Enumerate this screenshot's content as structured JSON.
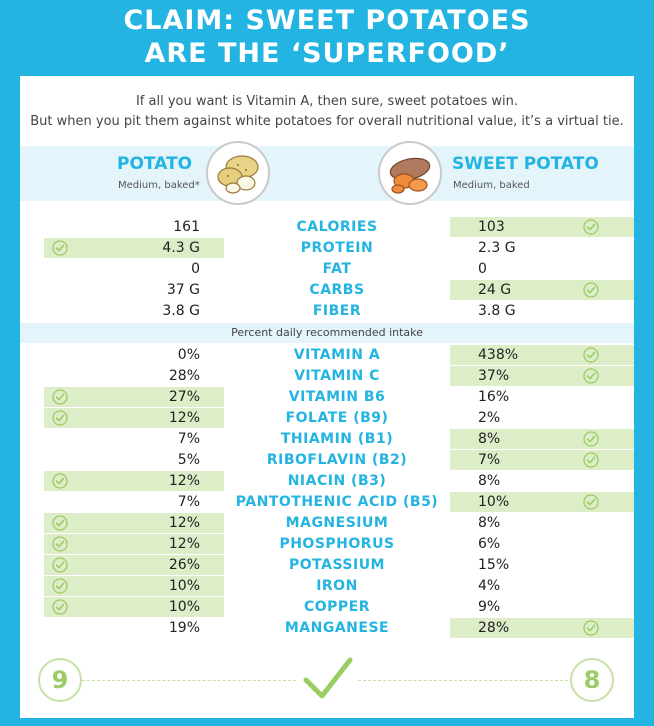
{
  "title": {
    "line1": "CLAIM: SWEET POTATOES",
    "line2": "ARE THE ‘SUPERFOOD’"
  },
  "intro": {
    "line1": "If all you want is Vitamin A, then sure, sweet potatoes win.",
    "line2": "But when you pit them against white potatoes for overall nutritional value, it’s a virtual tie."
  },
  "potato": {
    "name": "POTATO",
    "sub": "Medium, baked*"
  },
  "sweet": {
    "name": "SWEET POTATO",
    "sub": "Medium, baked"
  },
  "percent_label": "Percent daily recommended intake",
  "rows": [
    {
      "name": "CALORIES",
      "potato": "161",
      "sweet": "103",
      "winner": "sweet"
    },
    {
      "name": "PROTEIN",
      "potato": "4.3 G",
      "sweet": "2.3 G",
      "winner": "potato"
    },
    {
      "name": "FAT",
      "potato": "0",
      "sweet": "0",
      "winner": "none"
    },
    {
      "name": "CARBS",
      "potato": "37 G",
      "sweet": "24 G",
      "winner": "sweet"
    },
    {
      "name": "FIBER",
      "potato": "3.8 G",
      "sweet": "3.8 G",
      "winner": "none"
    },
    {
      "name": "VITAMIN A",
      "potato": "0%",
      "sweet": "438%",
      "winner": "sweet"
    },
    {
      "name": "VITAMIN C",
      "potato": "28%",
      "sweet": "37%",
      "winner": "sweet"
    },
    {
      "name": "VITAMIN B6",
      "potato": "27%",
      "sweet": "16%",
      "winner": "potato"
    },
    {
      "name": "FOLATE (B9)",
      "potato": "12%",
      "sweet": "2%",
      "winner": "potato"
    },
    {
      "name": "THIAMIN (B1)",
      "potato": "7%",
      "sweet": "8%",
      "winner": "sweet"
    },
    {
      "name": "RIBOFLAVIN (B2)",
      "potato": "5%",
      "sweet": "7%",
      "winner": "sweet"
    },
    {
      "name": "NIACIN (B3)",
      "potato": "12%",
      "sweet": "8%",
      "winner": "potato"
    },
    {
      "name": "PANTOTHENIC ACID (B5)",
      "potato": "7%",
      "sweet": "10%",
      "winner": "sweet"
    },
    {
      "name": "MAGNESIUM",
      "potato": "12%",
      "sweet": "8%",
      "winner": "potato"
    },
    {
      "name": "PHOSPHORUS",
      "potato": "12%",
      "sweet": "6%",
      "winner": "potato"
    },
    {
      "name": "POTASSIUM",
      "potato": "26%",
      "sweet": "15%",
      "winner": "potato"
    },
    {
      "name": "IRON",
      "potato": "10%",
      "sweet": "4%",
      "winner": "potato"
    },
    {
      "name": "COPPER",
      "potato": "10%",
      "sweet": "9%",
      "winner": "potato"
    },
    {
      "name": "MANGANESE",
      "potato": "19%",
      "sweet": "28%",
      "winner": "sweet"
    }
  ],
  "score": {
    "potato": "9",
    "sweet": "8"
  },
  "colors": {
    "accent": "#23b4e2",
    "win_bg": "#dcedc8",
    "check": "#9ccc65"
  },
  "icons": {
    "check": "check-circle-icon",
    "potato": "potato-illustration",
    "sweet": "sweet-potato-illustration",
    "tie": "big-check-icon"
  }
}
